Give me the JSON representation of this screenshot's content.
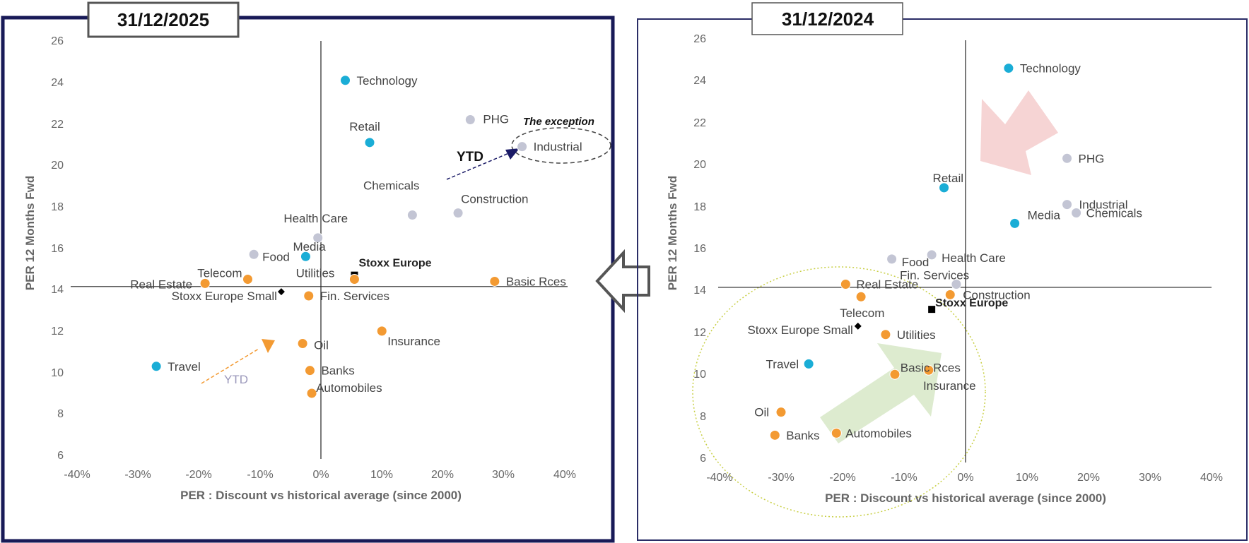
{
  "colors": {
    "cyan": "#1aadd6",
    "orange": "#f39a32",
    "grey": "#c3c5d4",
    "black": "#000000",
    "left_frame": "#181a57",
    "right_frame": "#2a2d66",
    "pink_arrow": "#f6d4d4",
    "green_arrow": "#ddebcf",
    "ellipse": "#c8cf44",
    "ytd_blue": "#1a1a66",
    "ytd_orange": "#f39a32",
    "ytd_text": "#9b98bb"
  },
  "chart_data": [
    {
      "type": "scatter",
      "title": "31/12/2025",
      "xlabel": "PER : Discount vs historical average (since 2000)",
      "ylabel": "PER 12 Months Fwd",
      "xlim": [
        -0.4,
        0.4
      ],
      "ylim": [
        6,
        26
      ],
      "xticks": [
        "-40%",
        "-30%",
        "-20%",
        "-10%",
        "0%",
        "10%",
        "20%",
        "30%",
        "40%"
      ],
      "yticks": [
        "6",
        "8",
        "10",
        "12",
        "14",
        "16",
        "18",
        "20",
        "22",
        "24",
        "26"
      ],
      "grid": false,
      "points": [
        {
          "label": "Technology",
          "x": 0.04,
          "y": 24.1,
          "color": "cyan",
          "marker": "circle"
        },
        {
          "label": "Retail",
          "x": 0.08,
          "y": 21.1,
          "color": "cyan",
          "marker": "circle"
        },
        {
          "label": "PHG",
          "x": 0.245,
          "y": 22.2,
          "color": "grey",
          "marker": "circle"
        },
        {
          "label": "Industrial",
          "x": 0.33,
          "y": 20.9,
          "color": "grey",
          "marker": "circle"
        },
        {
          "label": "Chemicals",
          "x": 0.15,
          "y": 17.6,
          "color": "grey",
          "marker": "circle"
        },
        {
          "label": "Construction",
          "x": 0.225,
          "y": 17.7,
          "color": "grey",
          "marker": "circle"
        },
        {
          "label": "Health Care",
          "x": -0.005,
          "y": 16.5,
          "color": "grey",
          "marker": "circle"
        },
        {
          "label": "Food",
          "x": -0.11,
          "y": 15.7,
          "color": "grey",
          "marker": "circle"
        },
        {
          "label": "Media",
          "x": -0.025,
          "y": 15.6,
          "color": "cyan",
          "marker": "circle"
        },
        {
          "label": "Stoxx Europe",
          "x": 0.055,
          "y": 14.7,
          "color": "black",
          "marker": "square"
        },
        {
          "label": "Utilities",
          "x": 0.055,
          "y": 14.5,
          "color": "orange",
          "marker": "circle"
        },
        {
          "label": "Telecom",
          "x": -0.12,
          "y": 14.5,
          "color": "orange",
          "marker": "circle"
        },
        {
          "label": "Real Estate",
          "x": -0.19,
          "y": 14.3,
          "color": "orange",
          "marker": "circle"
        },
        {
          "label": "Basic Rces",
          "x": 0.285,
          "y": 14.4,
          "color": "orange",
          "marker": "circle"
        },
        {
          "label": "Stoxx Europe Small",
          "x": -0.065,
          "y": 13.9,
          "color": "black",
          "marker": "diamond"
        },
        {
          "label": "Fin. Services",
          "x": -0.02,
          "y": 13.7,
          "color": "orange",
          "marker": "circle"
        },
        {
          "label": "Insurance",
          "x": 0.1,
          "y": 12.0,
          "color": "orange",
          "marker": "circle"
        },
        {
          "label": "Oil",
          "x": -0.03,
          "y": 11.4,
          "color": "orange",
          "marker": "circle"
        },
        {
          "label": "Travel",
          "x": -0.27,
          "y": 10.3,
          "color": "cyan",
          "marker": "circle"
        },
        {
          "label": "Banks",
          "x": -0.018,
          "y": 10.1,
          "color": "orange",
          "marker": "circle"
        },
        {
          "label": "Automobiles",
          "x": -0.015,
          "y": 9.0,
          "color": "orange",
          "marker": "circle"
        }
      ],
      "annotations": {
        "exception": "The exception",
        "ytd_top": "YTD",
        "ytd_bottom": "YTD"
      }
    },
    {
      "type": "scatter",
      "title": "31/12/2024",
      "xlabel": "PER : Discount vs historical average (since 2000)",
      "ylabel": "PER 12 Months Fwd",
      "xlim": [
        -0.4,
        0.4
      ],
      "ylim": [
        6,
        26
      ],
      "xticks": [
        "-40%",
        "-30%",
        "-20%",
        "-10%",
        "0%",
        "10%",
        "20%",
        "30%",
        "40%"
      ],
      "yticks": [
        "6",
        "8",
        "10",
        "12",
        "14",
        "16",
        "18",
        "20",
        "22",
        "24",
        "26"
      ],
      "grid": false,
      "points": [
        {
          "label": "Technology",
          "x": 0.07,
          "y": 24.6,
          "color": "cyan",
          "marker": "circle"
        },
        {
          "label": "PHG",
          "x": 0.165,
          "y": 20.3,
          "color": "grey",
          "marker": "circle"
        },
        {
          "label": "Retail",
          "x": -0.035,
          "y": 18.9,
          "color": "cyan",
          "marker": "circle"
        },
        {
          "label": "Industrial",
          "x": 0.165,
          "y": 18.1,
          "color": "grey",
          "marker": "circle"
        },
        {
          "label": "Chemicals",
          "x": 0.18,
          "y": 17.7,
          "color": "grey",
          "marker": "circle"
        },
        {
          "label": "Media",
          "x": 0.08,
          "y": 17.2,
          "color": "cyan",
          "marker": "circle"
        },
        {
          "label": "Food",
          "x": -0.12,
          "y": 15.5,
          "color": "grey",
          "marker": "circle"
        },
        {
          "label": "Health Care",
          "x": -0.055,
          "y": 15.7,
          "color": "grey",
          "marker": "circle"
        },
        {
          "label": "Fin. Services",
          "x": -0.015,
          "y": 14.3,
          "color": "grey",
          "marker": "circle"
        },
        {
          "label": "Real Estate",
          "x": -0.195,
          "y": 14.3,
          "color": "orange",
          "marker": "circle"
        },
        {
          "label": "Construction",
          "x": -0.025,
          "y": 13.8,
          "color": "orange",
          "marker": "circle"
        },
        {
          "label": "",
          "x": -0.17,
          "y": 13.7,
          "color": "orange",
          "marker": "circle"
        },
        {
          "label": "Stoxx Europe",
          "x": -0.055,
          "y": 13.1,
          "color": "black",
          "marker": "square"
        },
        {
          "label": "Telecom",
          "x": -0.175,
          "y": 12.3,
          "color": "black",
          "marker": "diamond"
        },
        {
          "label": "Stoxx Europe Small",
          "x": -0.175,
          "y": 12.3,
          "color": "black",
          "marker": "none"
        },
        {
          "label": "Utilities",
          "x": -0.13,
          "y": 11.9,
          "color": "orange",
          "marker": "circle"
        },
        {
          "label": "Travel",
          "x": -0.255,
          "y": 10.5,
          "color": "cyan",
          "marker": "circle"
        },
        {
          "label": "Basic Rces",
          "x": -0.06,
          "y": 10.2,
          "color": "orange",
          "marker": "circle"
        },
        {
          "label": "Insurance",
          "x": -0.115,
          "y": 10.0,
          "color": "orange",
          "marker": "circle"
        },
        {
          "label": "Oil",
          "x": -0.3,
          "y": 8.2,
          "color": "orange",
          "marker": "circle"
        },
        {
          "label": "Banks",
          "x": -0.31,
          "y": 7.1,
          "color": "orange",
          "marker": "circle"
        },
        {
          "label": "Automobiles",
          "x": -0.21,
          "y": 7.2,
          "color": "orange",
          "marker": "circle"
        }
      ]
    }
  ]
}
